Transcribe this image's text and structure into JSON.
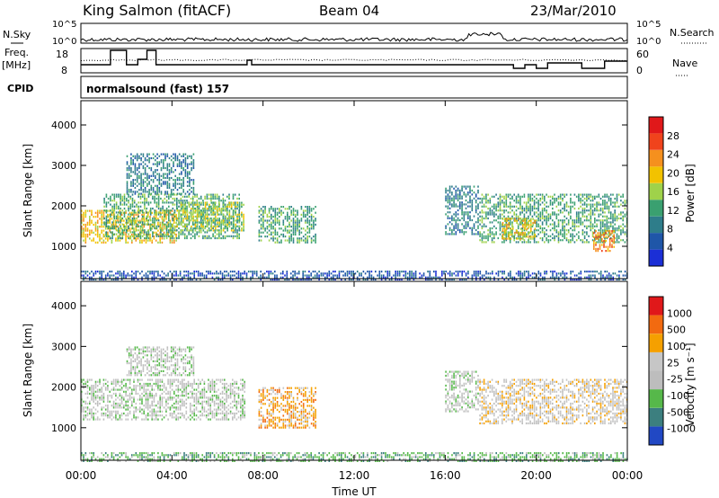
{
  "header": {
    "station": "King Salmon (fitACF)",
    "beam": "Beam 04",
    "date": "23/Mar/2010"
  },
  "top_panels": {
    "nsky_label": "N.Sky",
    "nsearch_label": "N.Search",
    "nsky_ticks": [
      "10^5",
      "10^0"
    ],
    "freq_label": "Freq.",
    "freq_unit": "[MHz]",
    "freq_ticks": [
      "18",
      "8"
    ],
    "nave_label": "Nave",
    "nave_ticks": [
      "60",
      "0"
    ],
    "cpid_label": "CPID",
    "cpid_value": "normalsound (fast) 157"
  },
  "colors": {
    "power_scale": [
      "#1b2fd6",
      "#1f56a8",
      "#2e7d8a",
      "#3aa070",
      "#9fd24a",
      "#f2c200",
      "#f5901e",
      "#f0431c",
      "#e0181a"
    ],
    "velocity_scale": [
      "#2148c4",
      "#3c7f7f",
      "#56b84a",
      "#bdbdbd",
      "#c6c6c6",
      "#f5a000",
      "#f26a10",
      "#e0181a"
    ]
  },
  "chart_data": [
    {
      "type": "heatmap",
      "name": "power",
      "ylabel": "Slant Range [km]",
      "xlabel": "",
      "ylim": [
        200,
        4600
      ],
      "yticks": [
        "4000",
        "3000",
        "2000",
        "1000"
      ],
      "colorbar_label": "Power [dB]",
      "colorbar_ticks": [
        "28",
        "24",
        "20",
        "16",
        "12",
        "8",
        "4"
      ],
      "regions": [
        {
          "t0": 0.0,
          "t1": 4.2,
          "r0": 1100,
          "r1": 1900,
          "level": 5
        },
        {
          "t0": 1.0,
          "t1": 7.0,
          "r0": 1200,
          "r1": 2300,
          "level": 3
        },
        {
          "t0": 2.0,
          "t1": 5.0,
          "r0": 2300,
          "r1": 3300,
          "level": 2
        },
        {
          "t0": 4.2,
          "t1": 7.2,
          "r0": 1400,
          "r1": 2100,
          "level": 4
        },
        {
          "t0": 7.8,
          "t1": 10.3,
          "r0": 1100,
          "r1": 2000,
          "level": 3
        },
        {
          "t0": 16.0,
          "t1": 17.5,
          "r0": 1300,
          "r1": 2500,
          "level": 2
        },
        {
          "t0": 17.5,
          "t1": 24.0,
          "r0": 1100,
          "r1": 2300,
          "level": 3
        },
        {
          "t0": 18.5,
          "t1": 20.0,
          "r0": 1200,
          "r1": 1700,
          "level": 5
        },
        {
          "t0": 22.5,
          "t1": 23.4,
          "r0": 900,
          "r1": 1400,
          "level": 6
        },
        {
          "t0": 0.0,
          "t1": 24.0,
          "r0": 200,
          "r1": 400,
          "level": 1
        }
      ]
    },
    {
      "type": "heatmap",
      "name": "velocity",
      "ylabel": "Slant Range [km]",
      "xlabel": "Time UT",
      "ylim": [
        200,
        4600
      ],
      "yticks": [
        "4000",
        "3000",
        "2000",
        "1000"
      ],
      "xticks": [
        "00:00",
        "04:00",
        "08:00",
        "12:00",
        "16:00",
        "20:00",
        "00:00"
      ],
      "colorbar_label": "Velocity [m s⁻¹]",
      "colorbar_ticks": [
        "1000",
        "500",
        "100",
        "25",
        "-25",
        "-100",
        "-500",
        "-1000"
      ],
      "regions": [
        {
          "t0": 0.0,
          "t1": 7.2,
          "r0": 1200,
          "r1": 2200,
          "level": 3
        },
        {
          "t0": 2.0,
          "t1": 5.0,
          "r0": 2300,
          "r1": 3000,
          "level": 3
        },
        {
          "t0": 7.8,
          "t1": 10.3,
          "r0": 1000,
          "r1": 2000,
          "level": 5
        },
        {
          "t0": 16.0,
          "t1": 17.5,
          "r0": 1400,
          "r1": 2400,
          "level": 3
        },
        {
          "t0": 17.5,
          "t1": 24.0,
          "r0": 1100,
          "r1": 2200,
          "level": 4
        },
        {
          "t0": 0.0,
          "t1": 24.0,
          "r0": 200,
          "r1": 400,
          "level": 2
        }
      ]
    }
  ]
}
